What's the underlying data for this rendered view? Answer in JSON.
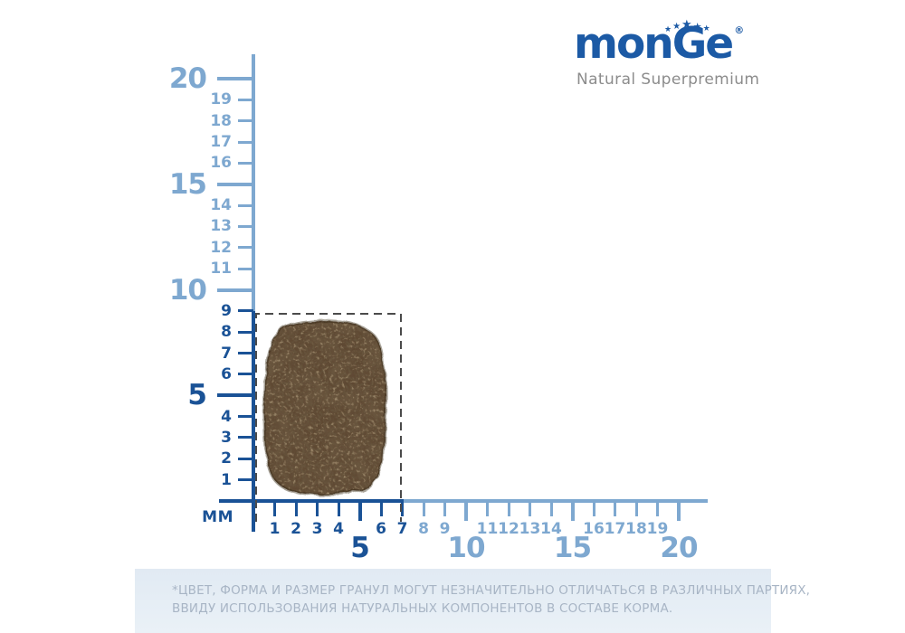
{
  "brand": {
    "wordmark": "monGe",
    "registered_mark": "®",
    "tagline": "Natural Superpremium",
    "star_char": "★",
    "star_count": 5,
    "colors": {
      "blue": "#1c5aa5",
      "tagline_gray": "#8c8c8c"
    }
  },
  "ruler": {
    "unit_label": "MM",
    "vertical": {
      "tick_values": [
        1,
        2,
        3,
        4,
        5,
        6,
        7,
        8,
        9,
        10,
        11,
        12,
        13,
        14,
        15,
        16,
        17,
        18,
        19,
        20
      ],
      "major_step": 5,
      "dark_up_to": 9,
      "max_mm": 20
    },
    "horizontal": {
      "tick_values": [
        1,
        2,
        3,
        4,
        5,
        6,
        7,
        8,
        9,
        10,
        11,
        12,
        13,
        14,
        15,
        16,
        17,
        18,
        19,
        20
      ],
      "major_step": 5,
      "dark_up_to": 7,
      "max_mm": 20
    },
    "colors": {
      "dark_blue": "#1a5296",
      "light_blue": "#7ea8d0"
    },
    "kibble_box": {
      "width_mm": 7,
      "height_mm": 9,
      "dash_color": "#4b4b4b"
    }
  },
  "kibble": {
    "colors": {
      "base": "#5e4832",
      "dark_speck": "#241809",
      "light_speck": "#c29f6b"
    }
  },
  "footer": {
    "line1": "*ЦВЕТ, ФОРМА И РАЗМЕР ГРАНУЛ МОГУТ НЕЗНАЧИТЕЛЬНО ОТЛИЧАТЬСЯ В РАЗЛИЧНЫХ ПАРТИЯХ,",
    "line2": "ВВИДУ ИСПОЛЬЗОВАНИЯ НАТУРАЛЬНЫХ КОМПОНЕНТОВ В СОСТАВЕ КОРМА.",
    "background": "#e1eaf3",
    "text_color": "#a8b5c5"
  }
}
